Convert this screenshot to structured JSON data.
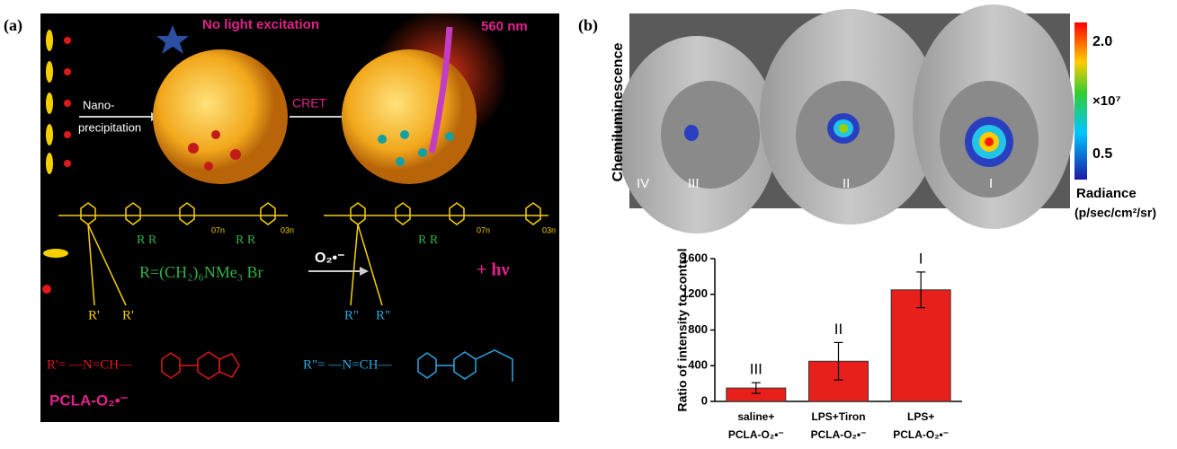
{
  "panel_a": {
    "label": "(a)",
    "no_light": "No light excitation",
    "wavelength": "560 nm",
    "nano_1": "Nano-",
    "nano_2": "precipitation",
    "cret": "CRET",
    "superoxide": "O₂•⁻",
    "subscript_left_1": "07n",
    "subscript_left_2": "03n",
    "subscript_right_1": "07n",
    "subscript_right_2": "03n",
    "r_group": "R=(CH₂)₆NMe₃ Br",
    "photon": "+ hν",
    "r_prime_def": "R'= —N=CH—",
    "r_dprime_def": "R\"= —N=CH—",
    "probe_name": "PCLA-O₂•⁻",
    "r_prime": "R'",
    "r_dprime": "R\"",
    "side_r": "R  R"
  },
  "panel_b": {
    "label": "(b)",
    "y_title": "Chemiluminescence",
    "scale_max": "2.0",
    "scale_unit": "×10⁷",
    "scale_min": "0.5",
    "radiance": "Radiance",
    "radiance_units": "(p/sec/cm²/sr)",
    "mice": [
      "IV",
      "III",
      "II",
      "I"
    ]
  },
  "chart_data": {
    "type": "bar",
    "y_label": "Ratio of intensity to control",
    "categories": [
      [
        "saline+",
        "PCLA-O₂•⁻"
      ],
      [
        "LPS+Tiron",
        "PCLA-O₂•⁻"
      ],
      [
        "LPS+",
        "PCLA-O₂•⁻"
      ]
    ],
    "values": [
      150,
      450,
      1250
    ],
    "errors": [
      60,
      210,
      200
    ],
    "bar_labels": [
      "III",
      "II",
      "I"
    ],
    "color": "#e8201c",
    "ylim": [
      0,
      1600
    ],
    "yticks": [
      0,
      400,
      800,
      1200,
      1600
    ]
  }
}
